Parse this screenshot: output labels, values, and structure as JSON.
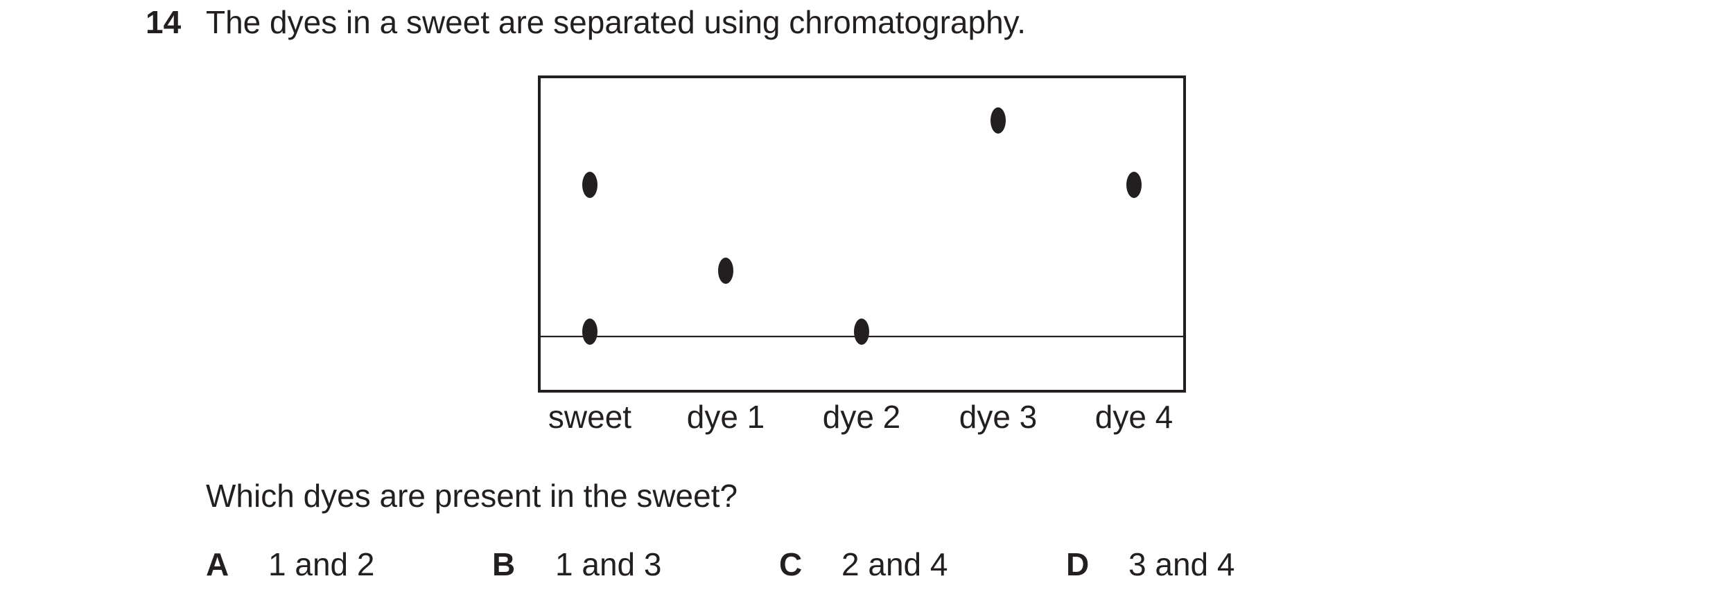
{
  "question": {
    "number": "14",
    "text": "The dyes in a sweet are separated using chromatography."
  },
  "chromatogram": {
    "labels": [
      "sweet",
      "dye 1",
      "dye 2",
      "dye 3",
      "dye 4"
    ],
    "spots": [
      {
        "lane": "sweet",
        "count": 2
      },
      {
        "lane": "dye 1",
        "count": 1
      },
      {
        "lane": "dye 2",
        "count": 1
      },
      {
        "lane": "dye 3",
        "count": 1
      },
      {
        "lane": "dye 4",
        "count": 1
      }
    ]
  },
  "prompt": "Which dyes are present in the sweet?",
  "options": [
    {
      "letter": "A",
      "text": "1 and 2"
    },
    {
      "letter": "B",
      "text": "1 and 3"
    },
    {
      "letter": "C",
      "text": "2 and 4"
    },
    {
      "letter": "D",
      "text": "3 and 4"
    }
  ]
}
